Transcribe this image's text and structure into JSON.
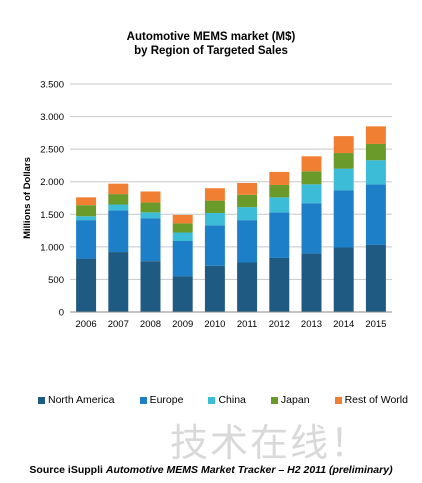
{
  "chart_data": {
    "type": "bar",
    "stacked": true,
    "title": "Automotive MEMS market (M$)",
    "subtitle": "by Region of Targeted Sales",
    "xlabel": "",
    "ylabel": "Millions  of Dollars",
    "categories": [
      "2006",
      "2007",
      "2008",
      "2009",
      "2010",
      "2011",
      "2012",
      "2013",
      "2014",
      "2015"
    ],
    "ylim": [
      0,
      3500
    ],
    "yticks": [
      0,
      500,
      1000,
      1500,
      2000,
      2500,
      3000,
      3500
    ],
    "ytick_labels": [
      "0",
      "500",
      "1.000",
      "1.500",
      "2.000",
      "2.500",
      "3.000",
      "3.500"
    ],
    "grid": true,
    "legend_position": "bottom",
    "series": [
      {
        "name": "North America",
        "color": "#1f5a82",
        "values": [
          820,
          920,
          780,
          550,
          710,
          760,
          830,
          900,
          990,
          1030
        ]
      },
      {
        "name": "Europe",
        "color": "#1c7fc8",
        "values": [
          590,
          640,
          660,
          540,
          620,
          650,
          700,
          770,
          880,
          930
        ]
      },
      {
        "name": "China",
        "color": "#3cbcd6",
        "values": [
          60,
          90,
          90,
          130,
          190,
          200,
          230,
          290,
          330,
          370
        ]
      },
      {
        "name": "Japan",
        "color": "#6a9a2a",
        "values": [
          170,
          160,
          150,
          140,
          190,
          190,
          190,
          200,
          240,
          250
        ]
      },
      {
        "name": "Rest of World",
        "color": "#f07f33",
        "values": [
          120,
          160,
          170,
          130,
          190,
          180,
          200,
          230,
          260,
          270
        ]
      }
    ]
  },
  "source": {
    "prefix": "Source iSuppli ",
    "italic": "Automotive MEMS Market Tracker – H2 2011 (preliminary)"
  },
  "watermark": "技术在线！"
}
